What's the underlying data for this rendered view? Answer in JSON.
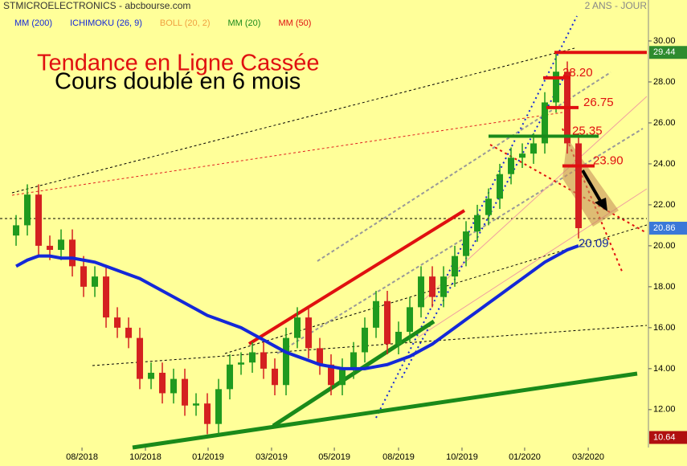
{
  "chart_data": {
    "type": "candlestick",
    "title": "STMICROELECTRONICS - abcbourse.com",
    "subtitle": "2 ANS - JOUR",
    "annotations": [
      "Tendance en Ligne Cassée",
      "Cours doublé en 6 mois"
    ],
    "categories": [
      null,
      null,
      null,
      null,
      null,
      null,
      null,
      null,
      null,
      null,
      null,
      null,
      null,
      null,
      null,
      null,
      null,
      null,
      null,
      null,
      null,
      null,
      null,
      null,
      null,
      null,
      null,
      null,
      null,
      null,
      null,
      null,
      null,
      null,
      null,
      null,
      null,
      null,
      null,
      null,
      null,
      null,
      null,
      null,
      null,
      null,
      null,
      null,
      null,
      null,
      null
    ],
    "open": [
      20.5,
      21,
      22.5,
      20,
      19.8,
      20.3,
      19,
      18,
      18.5,
      16.5,
      16,
      15.5,
      13.5,
      13.8,
      12.8,
      13.5,
      12.2,
      12.3,
      11.3,
      13,
      14.2,
      14.3,
      14.8,
      14,
      13.2,
      15.5,
      16.5,
      15,
      14.2,
      13.2,
      14,
      14.8,
      16,
      17.3,
      15.2,
      15.8,
      17,
      18.5,
      17.5,
      18.5,
      19.5,
      20.7,
      21.5,
      22.3,
      23.5,
      24.3,
      24.5,
      25,
      27,
      28.5,
      25
    ],
    "high": [
      21.5,
      23,
      23,
      20.5,
      20.8,
      20.8,
      19.5,
      19,
      19,
      17,
      16.5,
      16,
      14.3,
      14.3,
      14,
      14,
      12.8,
      12.8,
      13.5,
      14.7,
      14.8,
      15.3,
      15.3,
      14.5,
      16,
      17,
      17,
      15.5,
      14.7,
      14.5,
      15.3,
      16.5,
      17.8,
      17.8,
      16.3,
      17.5,
      19,
      19,
      19,
      20,
      21.2,
      22,
      22.8,
      24,
      24.8,
      25,
      25.5,
      27.5,
      29.44,
      29,
      25.5
    ],
    "low": [
      20,
      20.5,
      19.5,
      19.3,
      19.3,
      18.5,
      17.5,
      17.5,
      16,
      15.5,
      15,
      13,
      13,
      12.3,
      12.3,
      11.7,
      11.7,
      10.8,
      10.8,
      12.5,
      13.7,
      13.8,
      13.5,
      12.7,
      12.7,
      15,
      14.5,
      13.7,
      12.7,
      12.7,
      13.5,
      14.3,
      15.5,
      14.7,
      14.7,
      15.3,
      16.5,
      17,
      17,
      18,
      19,
      20.2,
      21,
      21.8,
      23,
      23.8,
      24,
      24.5,
      26.5,
      24.5,
      20.36
    ],
    "close": [
      21,
      22.5,
      20,
      19.8,
      20.3,
      19,
      18,
      18.5,
      16.5,
      16,
      15.5,
      13.5,
      13.8,
      12.8,
      13.5,
      12.2,
      12.3,
      11.3,
      13,
      14.2,
      14.3,
      14.8,
      14,
      13.2,
      15.5,
      16.5,
      15,
      14.2,
      13.2,
      14,
      14.8,
      16,
      17.3,
      15.2,
      15.8,
      17,
      18.5,
      17.5,
      18.5,
      19.5,
      20.7,
      21.5,
      22.3,
      23.5,
      24.3,
      24.5,
      25,
      27,
      28.5,
      25,
      20.86
    ],
    "up_color": "#1f9a1f",
    "down_color": "#d42020",
    "series": [
      {
        "name": "MM (200)",
        "color": "#1428d8",
        "values": [
          19.0,
          19.3,
          19.5,
          19.5,
          19.4,
          19.4,
          19.3,
          19.2,
          19.0,
          18.8,
          18.6,
          18.4,
          18.1,
          17.8,
          17.5,
          17.2,
          16.9,
          16.6,
          16.4,
          16.2,
          16.0,
          15.7,
          15.4,
          15.1,
          14.8,
          14.6,
          14.4,
          14.2,
          14.1,
          14.0,
          14.0,
          14.0,
          14.1,
          14.2,
          14.4,
          14.6,
          14.9,
          15.2,
          15.6,
          16.0,
          16.4,
          16.8,
          17.2,
          17.6,
          18.0,
          18.4,
          18.8,
          19.2,
          19.5,
          19.8,
          20.0
        ]
      },
      {
        "name": "ICHIMOKU (26, 9)",
        "color": "#1428d8"
      },
      {
        "name": "BOLL (20, 2)",
        "color": "#f0a040"
      },
      {
        "name": "MM (20)",
        "color": "#1a8a1a"
      },
      {
        "name": "MM (50)",
        "color": "#e01010"
      }
    ],
    "levels": [
      {
        "value": 28.2,
        "label": "28.20"
      },
      {
        "value": 26.75,
        "label": "26.75"
      },
      {
        "value": 25.35,
        "label": "25.35"
      },
      {
        "value": 23.9,
        "label": "23.90"
      },
      {
        "value": 20.09,
        "label": "20.09"
      }
    ],
    "price_markers": [
      {
        "value": 29.44,
        "color": "#2e8b2e"
      },
      {
        "value": 20.86,
        "color": "#3a78d8"
      },
      {
        "value": 10.64,
        "color": "#b01010"
      }
    ],
    "ylim": [
      10.15,
      32
    ],
    "yticks": [
      {
        "value": 12,
        "label": "12.00"
      },
      {
        "value": 14,
        "label": "14.00"
      },
      {
        "value": 16,
        "label": "16.00"
      },
      {
        "value": 18,
        "label": "18.00"
      },
      {
        "value": 20,
        "label": "20.00"
      },
      {
        "value": 22,
        "label": "22.00"
      },
      {
        "value": 24,
        "label": "24.00"
      },
      {
        "value": 26,
        "label": "26.00"
      },
      {
        "value": 28,
        "label": "28.00"
      },
      {
        "value": 30,
        "label": "30.00"
      }
    ],
    "xlim": [
      -1.43,
      56.07
    ],
    "xticks": [
      {
        "value": 5.86,
        "label": "08/2018"
      },
      {
        "value": 11.5,
        "label": "10/2018"
      },
      {
        "value": 17.07,
        "label": "01/2019"
      },
      {
        "value": 22.71,
        "label": "03/2019"
      },
      {
        "value": 28.29,
        "label": "05/2019"
      },
      {
        "value": 34,
        "label": "08/2019"
      },
      {
        "value": 39.64,
        "label": "10/2019"
      },
      {
        "value": 45.21,
        "label": "01/2020"
      },
      {
        "value": 50.86,
        "label": "03/2020"
      }
    ]
  }
}
